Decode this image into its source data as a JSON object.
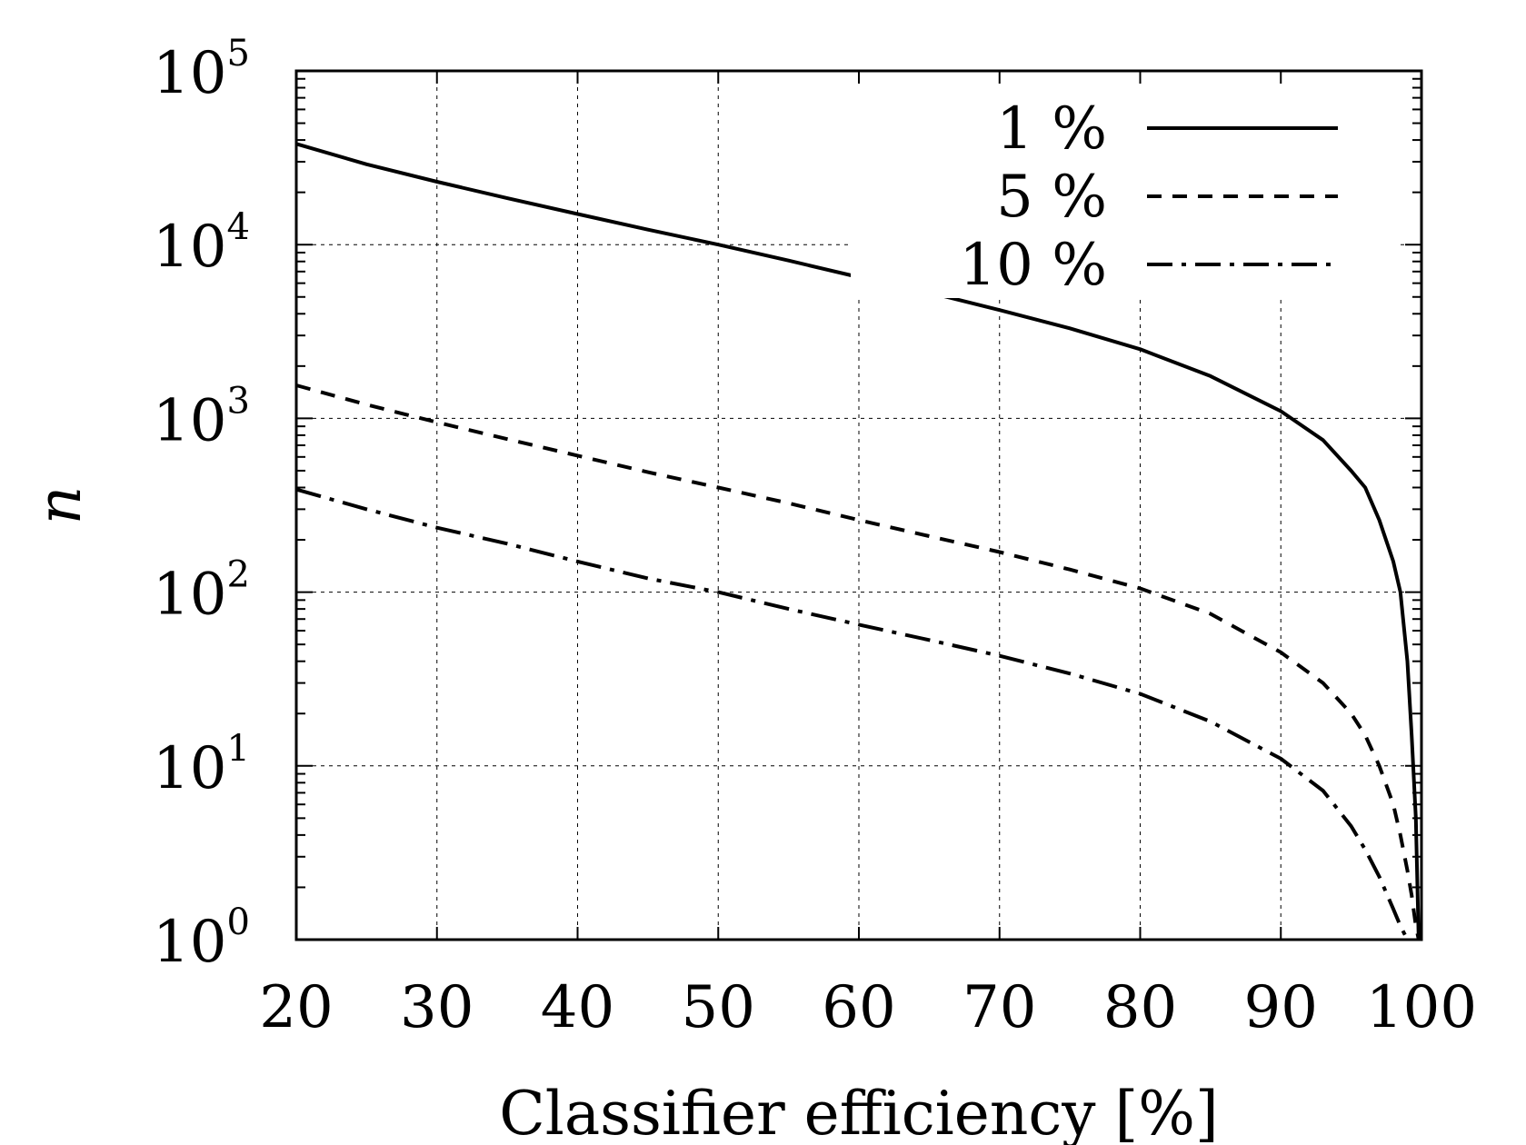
{
  "chart_data": {
    "type": "line",
    "title": "",
    "xlabel": "Classifier efficiency [%]",
    "ylabel": "n",
    "xlim": [
      20,
      100
    ],
    "ylim": [
      1,
      100000
    ],
    "y_scale": "log",
    "grid": true,
    "legend_position": "top-right",
    "x_ticks": [
      "20",
      "30",
      "40",
      "50",
      "60",
      "70",
      "80",
      "90",
      "100"
    ],
    "y_ticks": [
      {
        "base": "10",
        "exp": "0",
        "value": 1
      },
      {
        "base": "10",
        "exp": "1",
        "value": 10
      },
      {
        "base": "10",
        "exp": "2",
        "value": 100
      },
      {
        "base": "10",
        "exp": "3",
        "value": 1000
      },
      {
        "base": "10",
        "exp": "4",
        "value": 10000
      },
      {
        "base": "10",
        "exp": "5",
        "value": 100000
      }
    ],
    "series": [
      {
        "name": "1 %",
        "dash": "solid",
        "x": [
          20,
          25,
          30,
          35,
          40,
          45,
          50,
          55,
          60,
          65,
          70,
          75,
          80,
          85,
          90,
          93,
          95,
          96,
          97,
          98,
          98.5,
          99,
          99.3,
          99.6,
          99.8
        ],
        "y": [
          38000,
          29000,
          23000,
          18500,
          15000,
          12200,
          10000,
          8100,
          6500,
          5300,
          4200,
          3300,
          2500,
          1750,
          1100,
          750,
          500,
          400,
          260,
          150,
          100,
          40,
          15,
          5,
          1
        ]
      },
      {
        "name": "5 %",
        "dash": "dashed",
        "x": [
          20,
          25,
          30,
          35,
          40,
          45,
          50,
          55,
          60,
          65,
          70,
          75,
          80,
          85,
          90,
          93,
          95,
          96,
          97,
          98,
          98.5,
          99,
          99.3,
          99.6,
          99.8
        ],
        "y": [
          1550,
          1200,
          950,
          760,
          610,
          490,
          400,
          325,
          260,
          210,
          170,
          135,
          105,
          75,
          45,
          30,
          20,
          15,
          10,
          6,
          4,
          2.5,
          1.8,
          1.2,
          1
        ]
      },
      {
        "name": "10 %",
        "dash": "dash-dot",
        "x": [
          20,
          25,
          30,
          35,
          40,
          45,
          50,
          55,
          60,
          65,
          70,
          75,
          80,
          85,
          90,
          93,
          95,
          96,
          97,
          98,
          98.5,
          99
        ],
        "y": [
          390,
          300,
          235,
          190,
          150,
          120,
          100,
          80,
          65,
          53,
          43,
          34,
          26,
          18,
          11,
          7.2,
          4.5,
          3.3,
          2.3,
          1.5,
          1.2,
          1
        ]
      }
    ]
  }
}
